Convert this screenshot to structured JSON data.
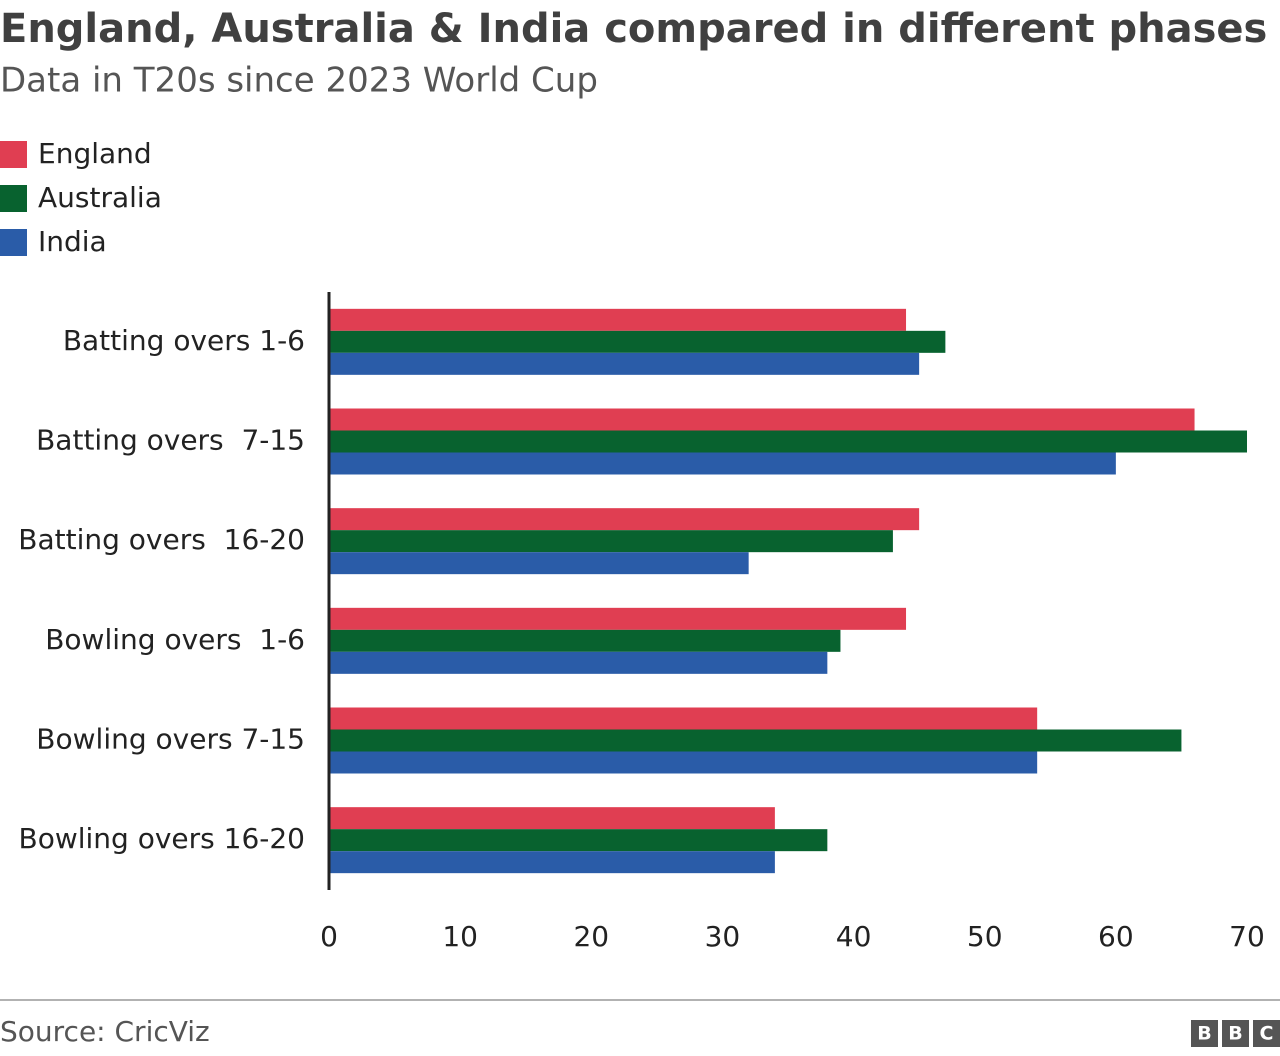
{
  "chart_data": {
    "type": "hbar",
    "title": "England, Australia & India compared in different phases",
    "subtitle": "Data in T20s since 2023 World Cup",
    "categories": [
      "Batting overs 1-6",
      "Batting overs  7-15",
      "Batting overs  16-20",
      "Bowling overs  1-6",
      "Bowling overs 7-15",
      "Bowling overs 16-20"
    ],
    "series": [
      {
        "name": "England",
        "color": "#e03e52",
        "values": [
          44,
          66,
          45,
          44,
          54,
          34
        ]
      },
      {
        "name": "Australia",
        "color": "#08622f",
        "values": [
          47,
          70,
          43,
          39,
          65,
          38
        ]
      },
      {
        "name": "India",
        "color": "#2a5ca8",
        "values": [
          45,
          60,
          32,
          38,
          54,
          34
        ]
      }
    ],
    "xlim": [
      0,
      70
    ],
    "xticks": [
      0,
      10,
      20,
      30,
      40,
      50,
      60,
      70
    ],
    "grid": false,
    "legend": "top-left",
    "source": "Source: CricViz",
    "logo": [
      "B",
      "B",
      "C"
    ]
  }
}
